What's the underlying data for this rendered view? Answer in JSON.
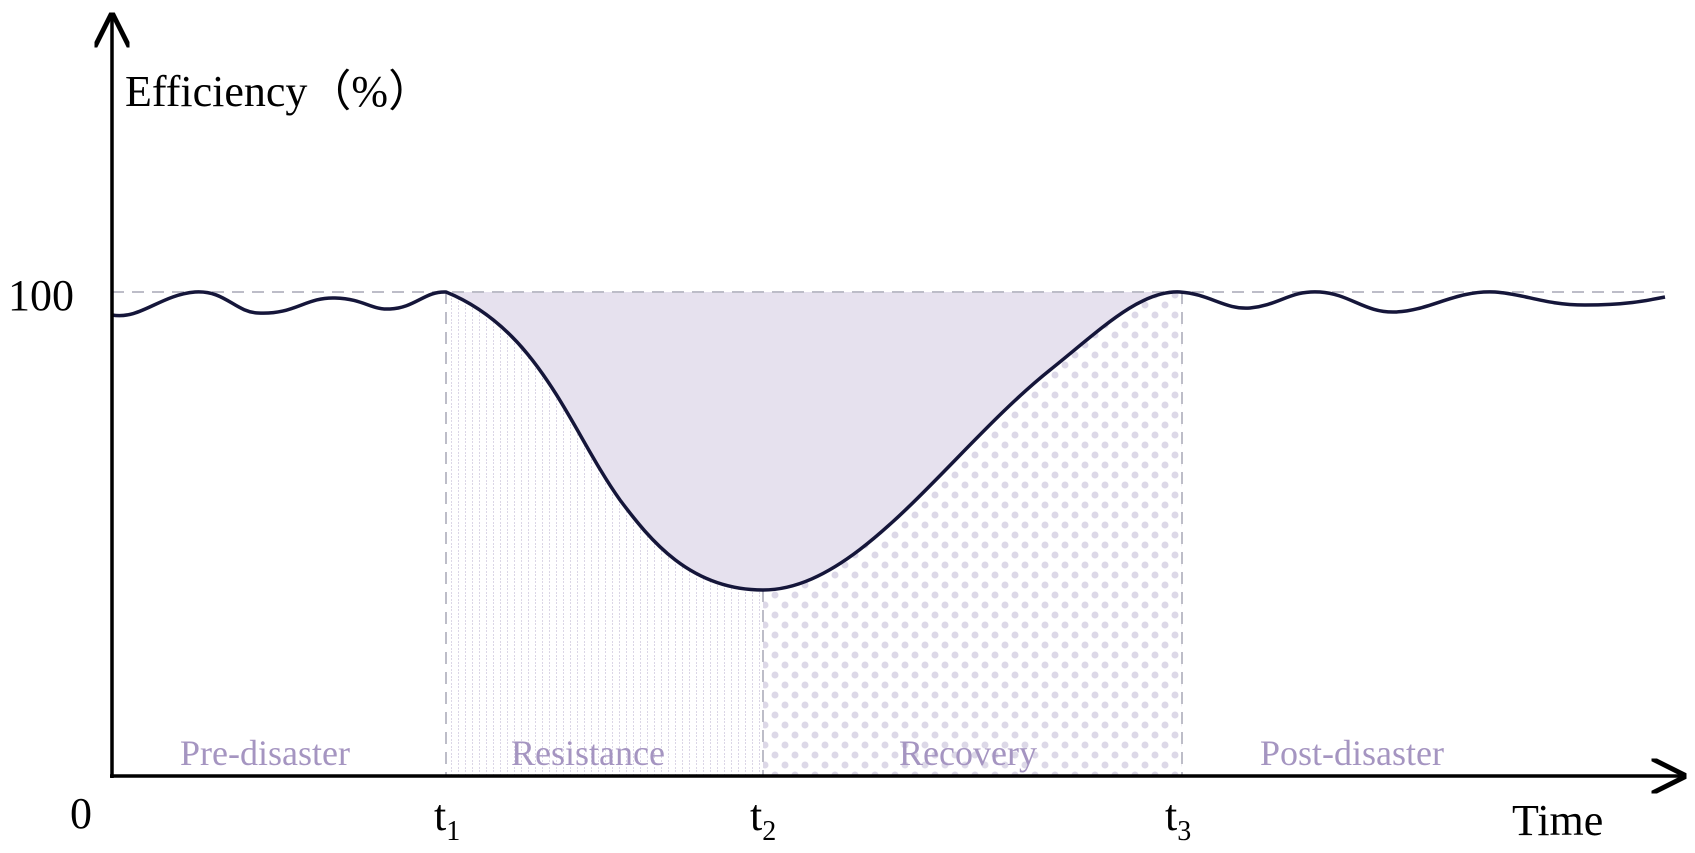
{
  "colors": {
    "curve": "#15163a",
    "axis": "#000000",
    "guide": "#bdbdc8",
    "loss_fill": "#e6e1ee",
    "pattern": "#cdc7dc",
    "phase_label": "#a595c1"
  },
  "axes": {
    "y_label": "Efficiency（%）",
    "x_label": "Time",
    "origin_label": "0",
    "y_tick_label": "100"
  },
  "ticks": [
    {
      "base": "t",
      "sub": "1"
    },
    {
      "base": "t",
      "sub": "2"
    },
    {
      "base": "t",
      "sub": "3"
    }
  ],
  "phases": [
    "Pre-disaster",
    "Resistance",
    "Recovery",
    "Post-disaster"
  ]
}
